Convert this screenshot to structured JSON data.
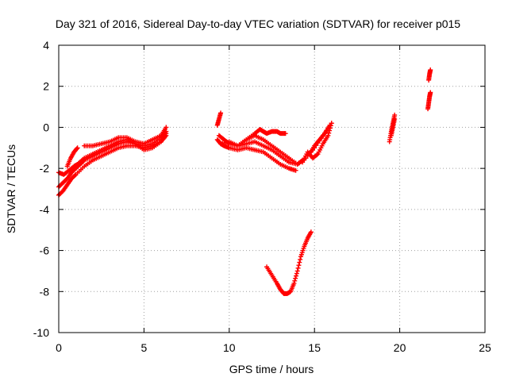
{
  "chart_data": {
    "type": "scatter",
    "title": "Day 321 of 2016, Sidereal Day-to-day VTEC variation (SDTVAR) for receiver p015",
    "xlabel": "GPS time / hours",
    "ylabel": "SDTVAR / TECUs",
    "xlim": [
      0,
      25
    ],
    "ylim": [
      -10,
      4
    ],
    "x_ticks": [
      0,
      5,
      10,
      15,
      20,
      25
    ],
    "x_tick_labels": [
      "0",
      "5",
      "10",
      "15",
      "20",
      "25"
    ],
    "y_ticks": [
      -10,
      -8,
      -6,
      -4,
      -2,
      0,
      2,
      4
    ],
    "y_tick_labels": [
      "-10",
      "-8",
      "-6",
      "-4",
      "-2",
      "0",
      "2",
      "4"
    ],
    "grid": true,
    "marker": "plus",
    "color": "#ff0000",
    "series": [
      {
        "x": [
          0,
          0.25,
          0.5,
          0.75,
          1.0,
          1.5,
          2.0,
          2.5,
          3.0,
          3.5,
          4.0,
          4.5,
          5.0,
          5.5,
          6.0,
          6.3
        ],
        "y": [
          -3.3,
          -3.1,
          -2.8,
          -2.5,
          -2.3,
          -1.9,
          -1.6,
          -1.4,
          -1.2,
          -1.0,
          -0.9,
          -0.9,
          -1.0,
          -0.9,
          -0.7,
          -0.4
        ]
      },
      {
        "x": [
          0,
          0.25,
          0.5,
          0.75,
          1.0,
          1.25,
          1.5,
          2.0,
          2.5,
          3.0,
          3.5,
          4.0,
          4.5,
          5.0,
          5.5,
          6.0,
          6.3
        ],
        "y": [
          -2.9,
          -2.7,
          -2.5,
          -2.2,
          -2.0,
          -1.8,
          -1.6,
          -1.4,
          -1.2,
          -1.0,
          -0.8,
          -0.7,
          -0.8,
          -0.9,
          -0.8,
          -0.5,
          -0.2
        ]
      },
      {
        "x": [
          0,
          0.3,
          0.6,
          0.9,
          1.1,
          1.5,
          2.0,
          2.5,
          3.0,
          3.5,
          4.0,
          4.5,
          5.0,
          5.5,
          6.0,
          6.3
        ],
        "y": [
          -2.2,
          -2.3,
          -2.1,
          -1.9,
          -1.8,
          -1.5,
          -1.3,
          -1.1,
          -0.9,
          -0.7,
          -0.6,
          -0.8,
          -1.1,
          -1.0,
          -0.7,
          -0.3
        ]
      },
      {
        "x": [
          0.5,
          0.7,
          0.9,
          1.1
        ],
        "y": [
          -1.9,
          -1.5,
          -1.2,
          -1.0
        ]
      },
      {
        "x": [
          1.5,
          2.0,
          2.5,
          3.0,
          3.5,
          4.0,
          4.5,
          5.0,
          5.5,
          6.0,
          6.3
        ],
        "y": [
          -0.9,
          -0.9,
          -0.8,
          -0.7,
          -0.5,
          -0.5,
          -0.7,
          -0.8,
          -0.6,
          -0.4,
          0.0
        ]
      },
      {
        "x": [
          9.3,
          9.5,
          9.7,
          10.0,
          10.5,
          11.0,
          11.5,
          12.0,
          12.5,
          13.0,
          13.5,
          13.9
        ],
        "y": [
          -0.6,
          -0.8,
          -0.9,
          -1.0,
          -1.1,
          -1.0,
          -1.1,
          -1.2,
          -1.5,
          -1.8,
          -2.0,
          -2.1
        ]
      },
      {
        "x": [
          9.5,
          10.0,
          10.5,
          11.0,
          11.5,
          12.0,
          12.5,
          13.0,
          13.5,
          14.0,
          14.3
        ],
        "y": [
          -0.8,
          -0.7,
          -0.9,
          -0.8,
          -0.7,
          -0.9,
          -1.1,
          -1.4,
          -1.7,
          -1.8,
          -1.6
        ]
      },
      {
        "x": [
          9.4,
          9.7,
          10.0,
          10.5,
          11.0,
          11.5,
          12.0,
          12.5,
          13.0,
          13.5,
          14.0,
          14.5,
          15.0,
          15.5,
          16.0
        ],
        "y": [
          -0.4,
          -0.6,
          -0.8,
          -0.9,
          -0.6,
          -0.4,
          -0.6,
          -0.9,
          -1.2,
          -1.5,
          -1.8,
          -1.5,
          -1.0,
          -0.4,
          0.2
        ]
      },
      {
        "x": [
          11.0,
          11.5,
          11.8,
          12.0,
          12.2,
          12.5,
          12.8,
          13.0,
          13.3
        ],
        "y": [
          -0.6,
          -0.3,
          -0.1,
          -0.2,
          -0.3,
          -0.2,
          -0.2,
          -0.3,
          -0.3
        ]
      },
      {
        "x": [
          9.3,
          9.4,
          9.5
        ],
        "y": [
          0.1,
          0.4,
          0.7
        ]
      },
      {
        "x": [
          12.2,
          12.5,
          12.8,
          13.0,
          13.2,
          13.4,
          13.6,
          13.8,
          14.0,
          14.2,
          14.4,
          14.6,
          14.8
        ],
        "y": [
          -6.8,
          -7.2,
          -7.6,
          -7.9,
          -8.1,
          -8.1,
          -8.0,
          -7.6,
          -7.0,
          -6.3,
          -5.8,
          -5.4,
          -5.1
        ]
      },
      {
        "x": [
          14.3,
          14.6,
          14.9,
          15.2,
          15.5,
          15.8,
          16.0
        ],
        "y": [
          -1.7,
          -1.2,
          -1.5,
          -1.3,
          -0.8,
          -0.4,
          0.2
        ]
      },
      {
        "x": [
          14.7,
          15.0,
          15.3,
          15.6,
          15.9
        ],
        "y": [
          -1.3,
          -0.9,
          -0.6,
          -0.3,
          0.1
        ]
      },
      {
        "x": [
          19.4,
          19.5,
          19.6,
          19.7
        ],
        "y": [
          -0.7,
          -0.2,
          0.2,
          0.6
        ]
      },
      {
        "x": [
          19.5,
          19.6,
          19.7
        ],
        "y": [
          -0.4,
          0.0,
          0.4
        ]
      },
      {
        "x": [
          21.7,
          21.75,
          21.8
        ],
        "y": [
          2.3,
          2.6,
          2.8
        ]
      },
      {
        "x": [
          21.65,
          21.7,
          21.75,
          21.8
        ],
        "y": [
          0.9,
          1.2,
          1.5,
          1.7
        ]
      }
    ]
  }
}
